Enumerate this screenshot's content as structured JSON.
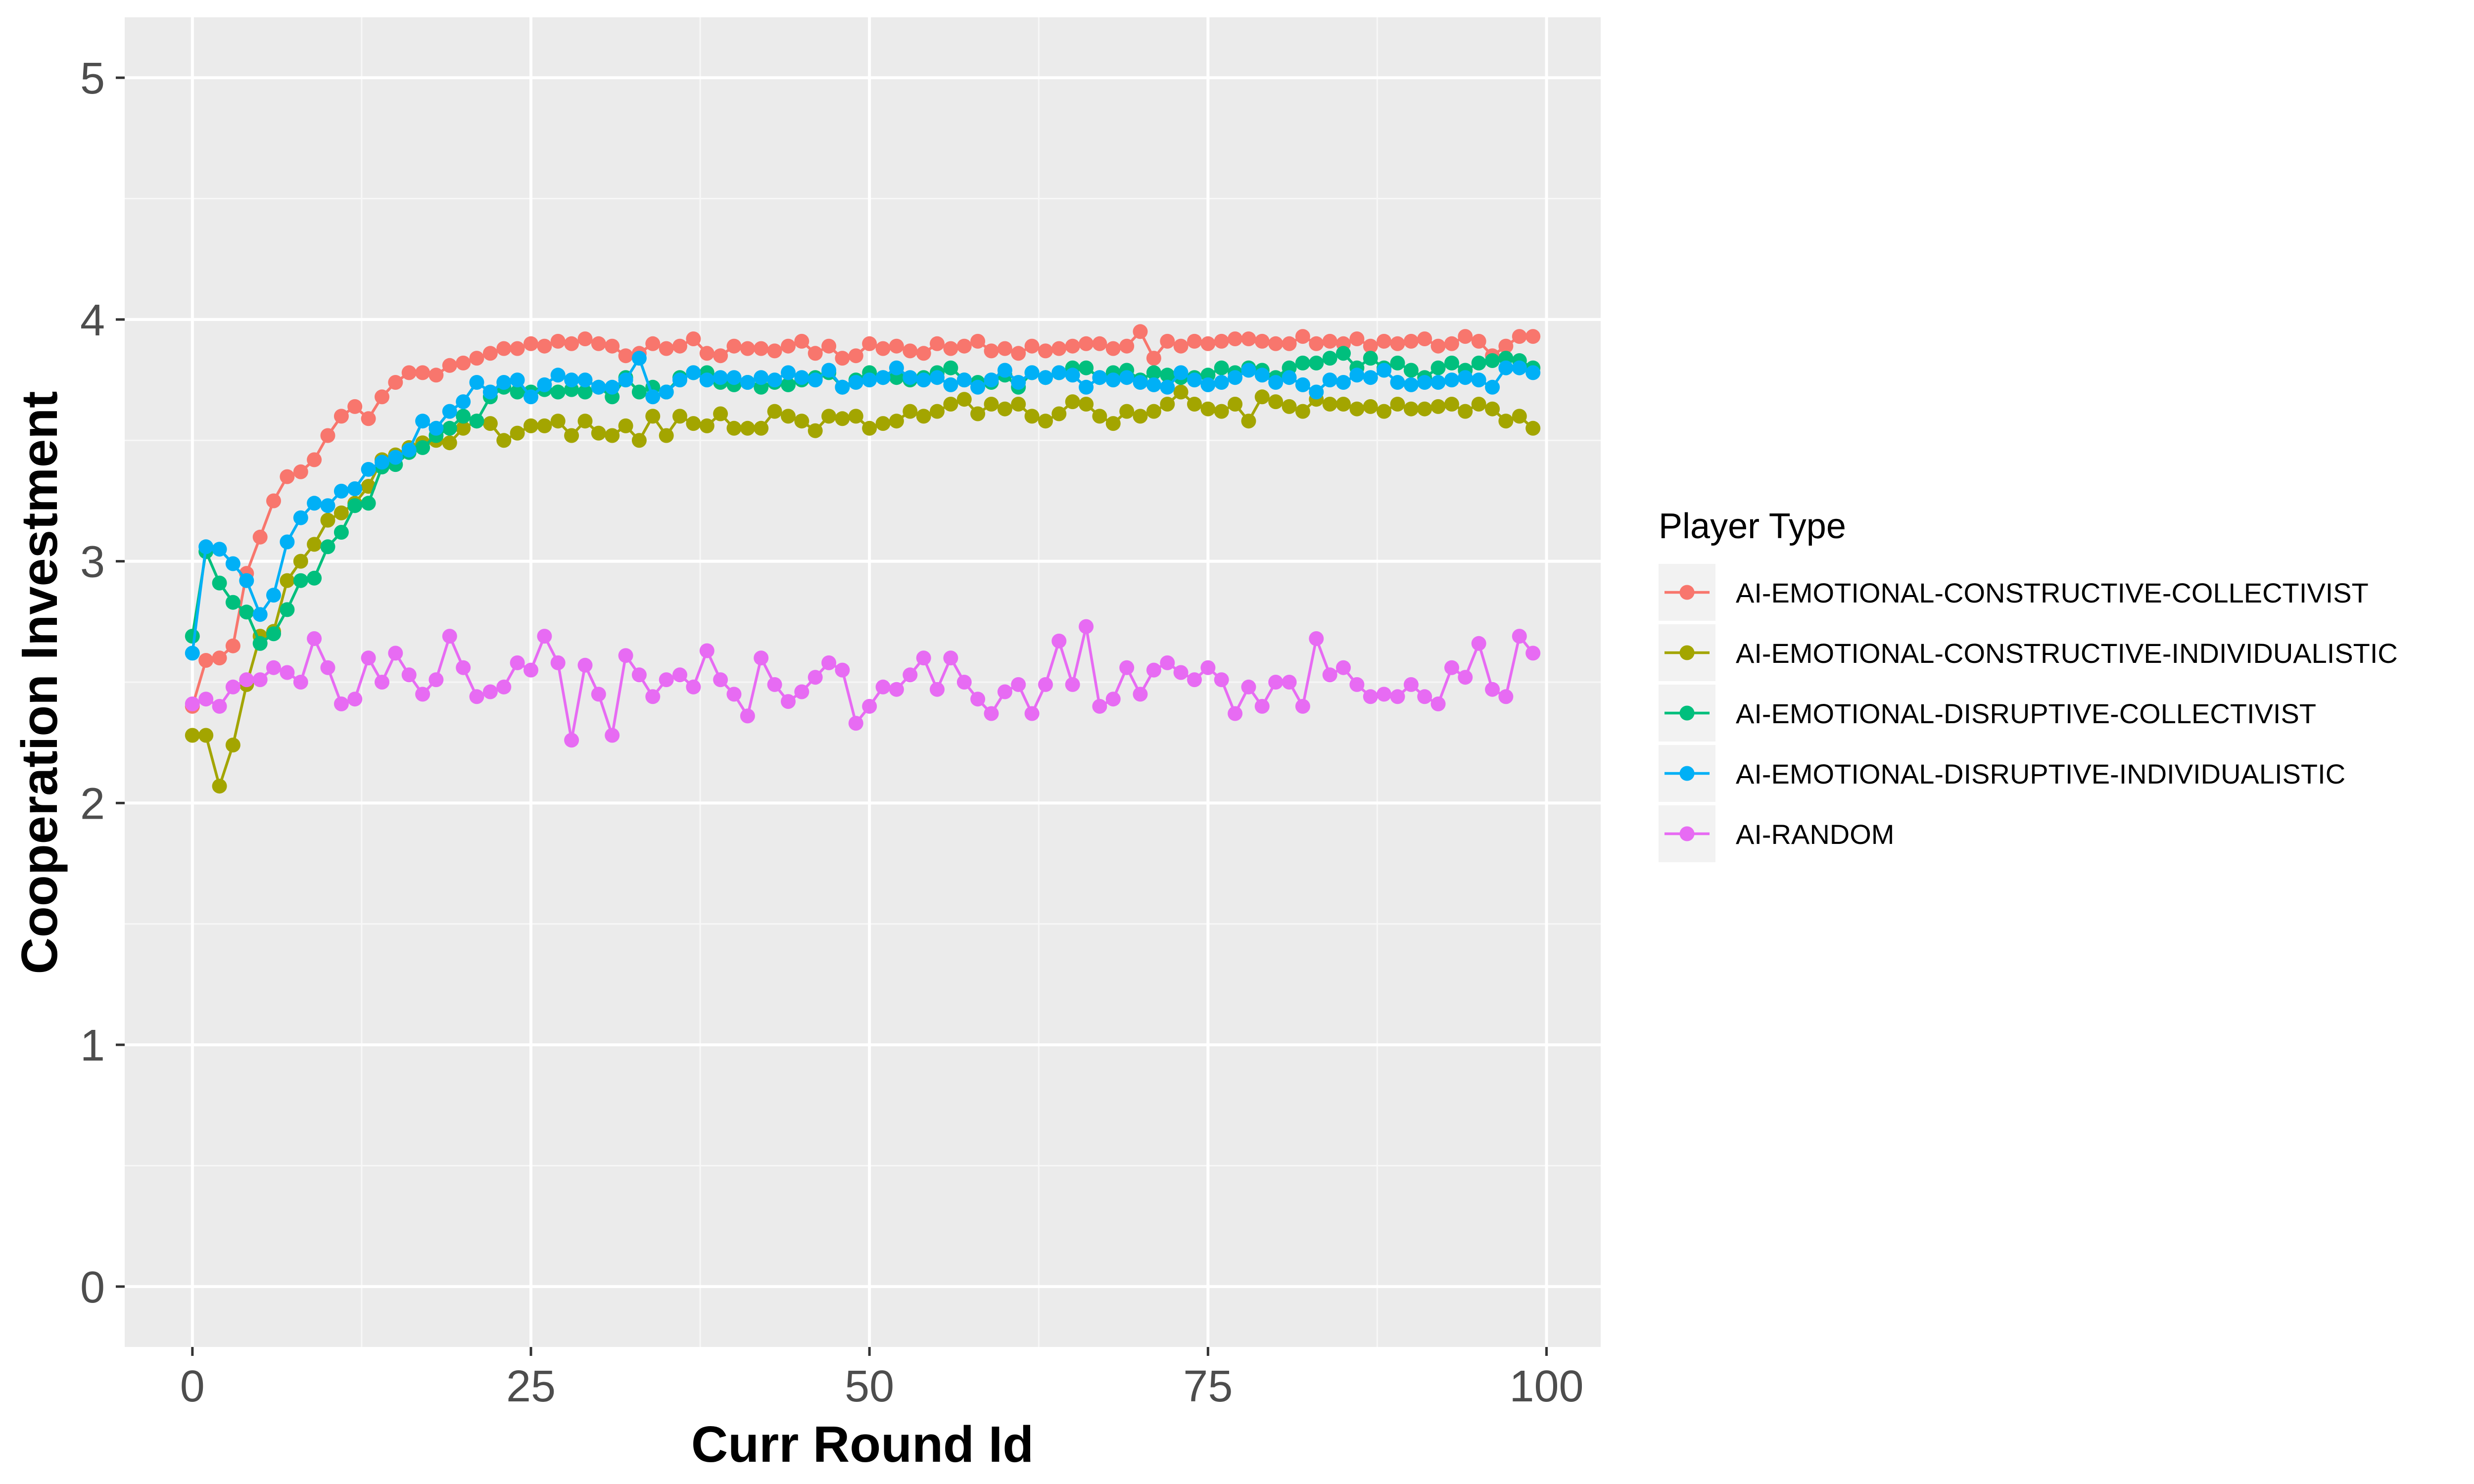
{
  "chart_data": {
    "type": "line",
    "xlabel": "Curr Round Id",
    "ylabel": "Cooperation Investment",
    "xlim": [
      -5,
      104
    ],
    "ylim": [
      -0.25,
      5.25
    ],
    "x_ticks": [
      0,
      25,
      50,
      75,
      100
    ],
    "y_ticks": [
      0,
      1,
      2,
      3,
      4,
      5
    ],
    "grid": true,
    "legend": {
      "title": "Player Type",
      "placement": "right"
    },
    "x": [
      0,
      1,
      2,
      3,
      4,
      5,
      6,
      7,
      8,
      9,
      10,
      11,
      12,
      13,
      14,
      15,
      16,
      17,
      18,
      19,
      20,
      21,
      22,
      23,
      24,
      25,
      26,
      27,
      28,
      29,
      30,
      31,
      32,
      33,
      34,
      35,
      36,
      37,
      38,
      39,
      40,
      41,
      42,
      43,
      44,
      45,
      46,
      47,
      48,
      49,
      50,
      51,
      52,
      53,
      54,
      55,
      56,
      57,
      58,
      59,
      60,
      61,
      62,
      63,
      64,
      65,
      66,
      67,
      68,
      69,
      70,
      71,
      72,
      73,
      74,
      75,
      76,
      77,
      78,
      79,
      80,
      81,
      82,
      83,
      84,
      85,
      86,
      87,
      88,
      89,
      90,
      91,
      92,
      93,
      94,
      95,
      96,
      97,
      98,
      99
    ],
    "series": [
      {
        "name": "AI-EMOTIONAL-CONSTRUCTIVE-COLLECTIVIST",
        "color": "#F8766D",
        "values": [
          2.4,
          2.59,
          2.6,
          2.65,
          2.95,
          3.1,
          3.25,
          3.35,
          3.37,
          3.42,
          3.52,
          3.6,
          3.64,
          3.59,
          3.68,
          3.74,
          3.78,
          3.78,
          3.77,
          3.81,
          3.82,
          3.84,
          3.86,
          3.88,
          3.88,
          3.9,
          3.89,
          3.91,
          3.9,
          3.92,
          3.9,
          3.89,
          3.85,
          3.86,
          3.9,
          3.88,
          3.89,
          3.92,
          3.86,
          3.85,
          3.89,
          3.88,
          3.88,
          3.87,
          3.89,
          3.91,
          3.86,
          3.89,
          3.84,
          3.85,
          3.9,
          3.88,
          3.89,
          3.87,
          3.86,
          3.9,
          3.88,
          3.89,
          3.91,
          3.87,
          3.88,
          3.86,
          3.89,
          3.87,
          3.88,
          3.89,
          3.9,
          3.9,
          3.88,
          3.89,
          3.95,
          3.84,
          3.91,
          3.89,
          3.91,
          3.9,
          3.91,
          3.92,
          3.92,
          3.91,
          3.9,
          3.9,
          3.93,
          3.9,
          3.91,
          3.9,
          3.92,
          3.89,
          3.91,
          3.9,
          3.91,
          3.92,
          3.89,
          3.9,
          3.93,
          3.91,
          3.85,
          3.89,
          3.93,
          3.93
        ]
      },
      {
        "name": "AI-EMOTIONAL-CONSTRUCTIVE-INDIVIDUALISTIC",
        "color": "#A3A500",
        "values": [
          2.28,
          2.28,
          2.07,
          2.24,
          2.49,
          2.69,
          2.71,
          2.92,
          3.0,
          3.07,
          3.17,
          3.2,
          3.24,
          3.31,
          3.42,
          3.44,
          3.47,
          3.49,
          3.5,
          3.49,
          3.55,
          3.58,
          3.57,
          3.5,
          3.53,
          3.56,
          3.56,
          3.58,
          3.52,
          3.58,
          3.53,
          3.52,
          3.56,
          3.5,
          3.6,
          3.52,
          3.6,
          3.57,
          3.56,
          3.61,
          3.55,
          3.55,
          3.55,
          3.62,
          3.6,
          3.58,
          3.54,
          3.6,
          3.59,
          3.6,
          3.55,
          3.57,
          3.58,
          3.62,
          3.6,
          3.62,
          3.65,
          3.67,
          3.61,
          3.65,
          3.63,
          3.65,
          3.6,
          3.58,
          3.61,
          3.66,
          3.65,
          3.6,
          3.57,
          3.62,
          3.6,
          3.62,
          3.65,
          3.7,
          3.65,
          3.63,
          3.62,
          3.65,
          3.58,
          3.68,
          3.66,
          3.64,
          3.62,
          3.67,
          3.65,
          3.65,
          3.63,
          3.64,
          3.62,
          3.65,
          3.63,
          3.63,
          3.64,
          3.65,
          3.62,
          3.65,
          3.63,
          3.58,
          3.6,
          3.55
        ]
      },
      {
        "name": "AI-EMOTIONAL-DISRUPTIVE-COLLECTIVIST",
        "color": "#00BF7D",
        "values": [
          2.69,
          3.04,
          2.91,
          2.83,
          2.79,
          2.66,
          2.7,
          2.8,
          2.92,
          2.93,
          3.06,
          3.12,
          3.23,
          3.24,
          3.39,
          3.4,
          3.45,
          3.47,
          3.52,
          3.55,
          3.6,
          3.58,
          3.68,
          3.72,
          3.7,
          3.7,
          3.71,
          3.7,
          3.71,
          3.7,
          3.72,
          3.68,
          3.76,
          3.7,
          3.72,
          3.7,
          3.76,
          3.78,
          3.78,
          3.74,
          3.73,
          3.74,
          3.72,
          3.74,
          3.73,
          3.75,
          3.76,
          3.78,
          3.72,
          3.75,
          3.78,
          3.76,
          3.76,
          3.75,
          3.76,
          3.78,
          3.8,
          3.75,
          3.74,
          3.74,
          3.77,
          3.72,
          3.78,
          3.76,
          3.78,
          3.8,
          3.8,
          3.76,
          3.78,
          3.79,
          3.75,
          3.78,
          3.77,
          3.76,
          3.76,
          3.77,
          3.8,
          3.78,
          3.8,
          3.79,
          3.76,
          3.8,
          3.82,
          3.82,
          3.84,
          3.86,
          3.8,
          3.84,
          3.8,
          3.82,
          3.79,
          3.76,
          3.8,
          3.82,
          3.79,
          3.82,
          3.83,
          3.84,
          3.83,
          3.8
        ]
      },
      {
        "name": "AI-EMOTIONAL-DISRUPTIVE-INDIVIDUALISTIC",
        "color": "#00B0F6",
        "values": [
          2.62,
          3.06,
          3.05,
          2.99,
          2.92,
          2.78,
          2.86,
          3.08,
          3.18,
          3.24,
          3.23,
          3.29,
          3.3,
          3.38,
          3.41,
          3.43,
          3.46,
          3.58,
          3.55,
          3.62,
          3.66,
          3.74,
          3.7,
          3.74,
          3.75,
          3.68,
          3.73,
          3.77,
          3.75,
          3.75,
          3.72,
          3.72,
          3.75,
          3.84,
          3.68,
          3.7,
          3.75,
          3.78,
          3.75,
          3.76,
          3.76,
          3.74,
          3.76,
          3.75,
          3.78,
          3.76,
          3.75,
          3.79,
          3.72,
          3.74,
          3.75,
          3.76,
          3.8,
          3.76,
          3.75,
          3.76,
          3.73,
          3.75,
          3.72,
          3.75,
          3.79,
          3.74,
          3.78,
          3.76,
          3.78,
          3.77,
          3.72,
          3.76,
          3.75,
          3.76,
          3.74,
          3.73,
          3.72,
          3.78,
          3.75,
          3.73,
          3.74,
          3.76,
          3.79,
          3.77,
          3.74,
          3.76,
          3.73,
          3.7,
          3.75,
          3.74,
          3.77,
          3.76,
          3.79,
          3.74,
          3.73,
          3.74,
          3.74,
          3.75,
          3.76,
          3.75,
          3.72,
          3.8,
          3.8,
          3.78
        ]
      },
      {
        "name": "AI-RANDOM",
        "color": "#E76BF3",
        "values": [
          2.41,
          2.43,
          2.4,
          2.48,
          2.51,
          2.51,
          2.56,
          2.54,
          2.5,
          2.68,
          2.56,
          2.41,
          2.43,
          2.6,
          2.5,
          2.62,
          2.53,
          2.45,
          2.51,
          2.69,
          2.56,
          2.44,
          2.46,
          2.48,
          2.58,
          2.55,
          2.69,
          2.58,
          2.26,
          2.57,
          2.45,
          2.28,
          2.61,
          2.53,
          2.44,
          2.51,
          2.53,
          2.48,
          2.63,
          2.51,
          2.45,
          2.36,
          2.6,
          2.49,
          2.42,
          2.46,
          2.52,
          2.58,
          2.55,
          2.33,
          2.4,
          2.48,
          2.47,
          2.53,
          2.6,
          2.47,
          2.6,
          2.5,
          2.43,
          2.37,
          2.46,
          2.49,
          2.37,
          2.49,
          2.67,
          2.49,
          2.73,
          2.4,
          2.43,
          2.56,
          2.45,
          2.55,
          2.58,
          2.54,
          2.51,
          2.56,
          2.51,
          2.37,
          2.48,
          2.4,
          2.5,
          2.5,
          2.4,
          2.68,
          2.53,
          2.56,
          2.49,
          2.44,
          2.45,
          2.44,
          2.49,
          2.44,
          2.41,
          2.56,
          2.52,
          2.66,
          2.47,
          2.44,
          2.69,
          2.62
        ]
      }
    ]
  }
}
